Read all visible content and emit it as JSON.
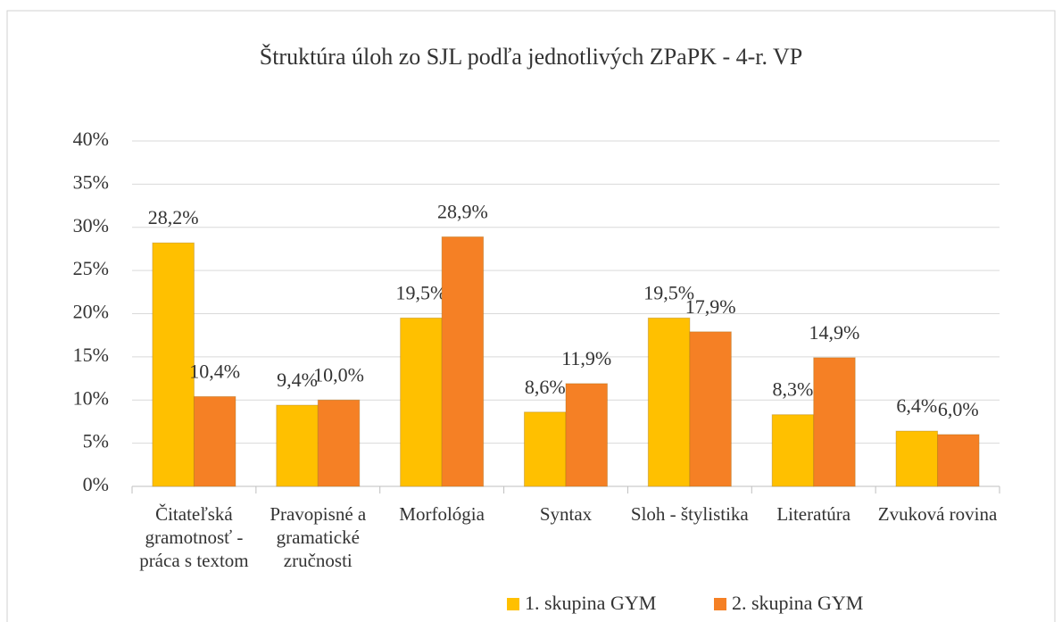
{
  "chart_data": {
    "type": "bar",
    "title": "Štruktúra úloh zo SJL podľa jednotlivých ZPaPK - 4-r. VP",
    "categories": [
      "Čitateľská gramotnosť - práca s textom",
      "Pravopisné a gramatické zručnosti",
      "Morfológia",
      "Syntax",
      "Sloh - štylistika",
      "Literatúra",
      "Zvuková rovina"
    ],
    "series": [
      {
        "name": "1. skupina GYM",
        "color": "#FFC000",
        "values": [
          28.2,
          9.4,
          19.5,
          8.6,
          19.5,
          8.3,
          6.4
        ],
        "value_labels": [
          "28,2%",
          "9,4%",
          "19,5%",
          "8,6%",
          "19,5%",
          "8,3%",
          "6,4%"
        ]
      },
      {
        "name": "2. skupina GYM",
        "color": "#F58025",
        "values": [
          10.4,
          10.0,
          28.9,
          11.9,
          17.9,
          14.9,
          6.0
        ],
        "value_labels": [
          "10,4%",
          "10,0%",
          "28,9%",
          "11,9%",
          "17,9%",
          "14,9%",
          "6,0%"
        ]
      }
    ],
    "ylim": [
      0,
      40
    ],
    "yticks": [
      {
        "value": 0,
        "label": "0%"
      },
      {
        "value": 5,
        "label": "5%"
      },
      {
        "value": 10,
        "label": "10%"
      },
      {
        "value": 15,
        "label": "15%"
      },
      {
        "value": 20,
        "label": "20%"
      },
      {
        "value": 25,
        "label": "25%"
      },
      {
        "value": 30,
        "label": "30%"
      },
      {
        "value": 35,
        "label": "35%"
      },
      {
        "value": 40,
        "label": "40%"
      }
    ],
    "grid": true
  }
}
